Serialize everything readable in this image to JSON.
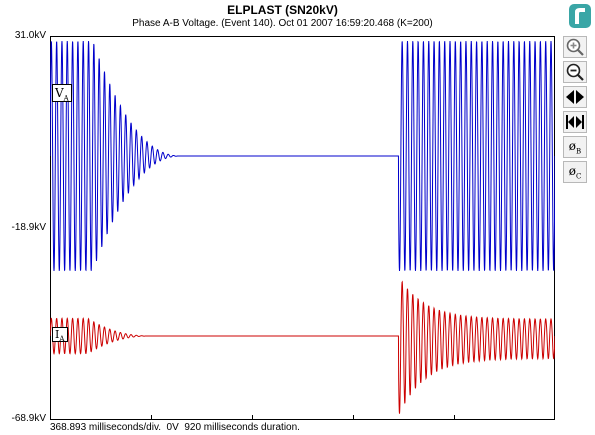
{
  "window": {
    "title": "ELPLAST (SN20kV)",
    "subtitle": "Phase A-B Voltage. (Event 140). Oct 01 2007 16:59:20.468 (K=200)",
    "footer": "368.893 milliseconds/div.  0V  920 milliseconds duration."
  },
  "axis": {
    "y_top": "31.0kV",
    "y_mid": "-18.9kV",
    "y_bottom": "-68.9kV"
  },
  "channels": [
    {
      "badge_main": "V",
      "badge_sub": "A",
      "color": "#0000cc"
    },
    {
      "badge_main": "I",
      "badge_sub": "A",
      "color": "#cc0000"
    }
  ],
  "toolbar": {
    "buttons": [
      {
        "name": "zoom-in",
        "icon": "zoom-in-icon"
      },
      {
        "name": "zoom-out",
        "icon": "zoom-out-icon"
      },
      {
        "name": "scroll-left-right",
        "icon": "arrows-lr-icon"
      },
      {
        "name": "move-to-edges",
        "icon": "arrows-edge-icon"
      },
      {
        "name": "phase-b",
        "icon": "phase-b-icon",
        "label_main": "ø",
        "label_sub": "B"
      },
      {
        "name": "phase-c",
        "icon": "phase-c-icon",
        "label_main": "ø",
        "label_sub": "C"
      }
    ]
  },
  "chart_data": {
    "type": "line",
    "title": "ELPLAST (SN20kV)",
    "subtitle": "Phase A-B Voltage. (Event 140). Oct 01 2007 16:59:20.468 (K=200)",
    "ylim_labels": [
      "31.0kV",
      "-18.9kV",
      "-68.9kV"
    ],
    "xlabel": "368.893 milliseconds/div.  0V  920 milliseconds duration.",
    "grid": false,
    "duration_ms": 920,
    "series": [
      {
        "name": "VA",
        "color": "#0000cc",
        "segments": [
          {
            "from_frac": 0.0,
            "to_frac": 0.085,
            "amplitude": 1.0,
            "behaviour": "steady oscillation"
          },
          {
            "from_frac": 0.085,
            "to_frac": 0.26,
            "amplitude": 1.0,
            "behaviour": "decaying to zero"
          },
          {
            "from_frac": 0.26,
            "to_frac": 0.69,
            "amplitude": 0.0,
            "behaviour": "flat"
          },
          {
            "from_frac": 0.69,
            "to_frac": 1.0,
            "amplitude": 1.0,
            "behaviour": "steady oscillation"
          }
        ]
      },
      {
        "name": "IA",
        "color": "#cc0000",
        "segments": [
          {
            "from_frac": 0.0,
            "to_frac": 0.075,
            "amplitude": 0.22,
            "behaviour": "small oscillation"
          },
          {
            "from_frac": 0.075,
            "to_frac": 0.2,
            "amplitude": 0.22,
            "behaviour": "decaying to zero"
          },
          {
            "from_frac": 0.2,
            "to_frac": 0.69,
            "amplitude": 0.0,
            "behaviour": "flat"
          },
          {
            "from_frac": 0.69,
            "to_frac": 1.0,
            "amplitude": 1.0,
            "behaviour": "inrush spike decaying to small oscillation"
          }
        ]
      }
    ]
  }
}
